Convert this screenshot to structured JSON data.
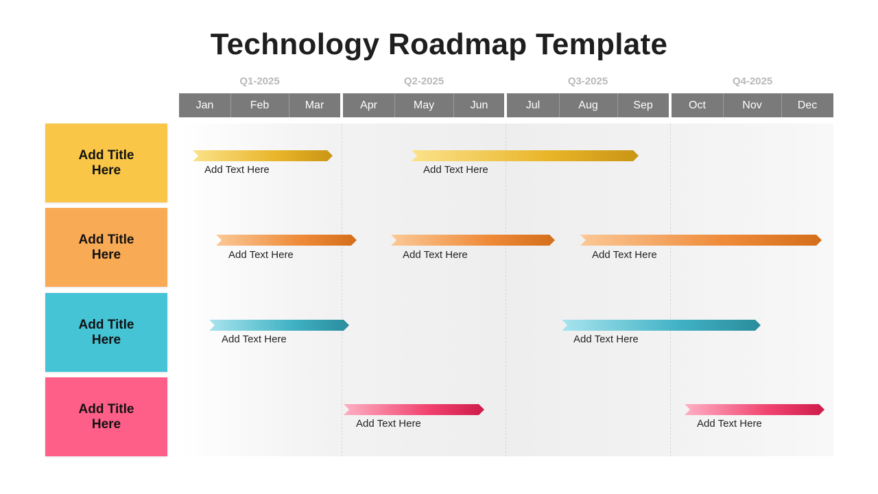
{
  "title": "Technology Roadmap Template",
  "quarters": [
    "Q1-2025",
    "Q2-2025",
    "Q3-2025",
    "Q4-2025"
  ],
  "months": [
    "Jan",
    "Feb",
    "Mar",
    "Apr",
    "May",
    "Jun",
    "Jul",
    "Aug",
    "Sep",
    "Oct",
    "Nov",
    "Dec"
  ],
  "rows": [
    {
      "title": "Add Title Here",
      "color": "#F9C647",
      "bars": [
        {
          "label": "Add Text Here",
          "start_month": "Jan",
          "end_month": "Mar"
        },
        {
          "label": "Add Text Here",
          "start_month": "Apr",
          "end_month": "Sep"
        }
      ]
    },
    {
      "title": "Add Title Here",
      "color": "#F9AA55",
      "bars": [
        {
          "label": "Add Text Here",
          "start_month": "Jan",
          "end_month": "Mar"
        },
        {
          "label": "Add Text Here",
          "start_month": "Apr",
          "end_month": "Aug"
        },
        {
          "label": "Add Text Here",
          "start_month": "Aug",
          "end_month": "Dec"
        }
      ]
    },
    {
      "title": "Add Title Here",
      "color": "#45C4D6",
      "bars": [
        {
          "label": "Add Text Here",
          "start_month": "Jan",
          "end_month": "Mar"
        },
        {
          "label": "Add Text Here",
          "start_month": "Jul",
          "end_month": "Nov"
        }
      ]
    },
    {
      "title": "Add Title Here",
      "color": "#FE5F88",
      "bars": [
        {
          "label": "Add Text Here",
          "start_month": "Apr",
          "end_month": "Jun"
        },
        {
          "label": "Add Text Here",
          "start_month": "Oct",
          "end_month": "Dec"
        }
      ]
    }
  ],
  "bar_gradients": [
    [
      "#FBE28A",
      "#E9B529",
      "#C99514"
    ],
    [
      "#FBC896",
      "#EE8A38",
      "#D46E1B"
    ],
    [
      "#A8E4EE",
      "#3FB1C4",
      "#2A8C9C"
    ],
    [
      "#FDB0C4",
      "#F1426F",
      "#CF1C4A"
    ]
  ]
}
